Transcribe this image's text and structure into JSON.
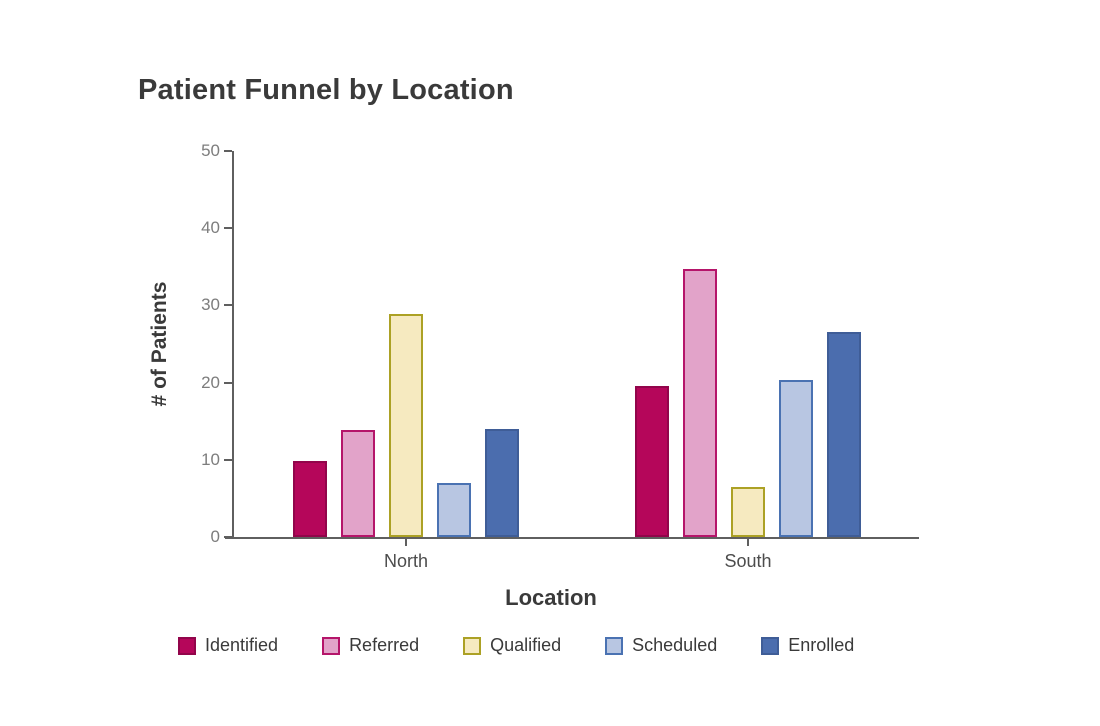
{
  "title": "Patient Funnel by Location",
  "chart_data": {
    "type": "bar",
    "title": "Patient Funnel by Location",
    "xlabel": "Location",
    "ylabel": "# of Patients",
    "categories": [
      "North",
      "South"
    ],
    "series": [
      {
        "name": "Identified",
        "values": [
          9.9,
          19.5
        ],
        "fill": "#b5065a",
        "edge": "#92054b"
      },
      {
        "name": "Referred",
        "values": [
          13.9,
          34.7
        ],
        "fill": "#e2a3c9",
        "edge": "#b5156a"
      },
      {
        "name": "Qualified",
        "values": [
          28.9,
          6.5
        ],
        "fill": "#f6eac0",
        "edge": "#aca125"
      },
      {
        "name": "Scheduled",
        "values": [
          7.0,
          20.4
        ],
        "fill": "#b8c6e2",
        "edge": "#4a72b2"
      },
      {
        "name": "Enrolled",
        "values": [
          14.0,
          26.6
        ],
        "fill": "#4b6dae",
        "edge": "#3f5d97"
      }
    ],
    "ylim": [
      0,
      50
    ],
    "y_ticks": [
      0,
      10,
      20,
      30,
      40,
      50
    ],
    "grid": false,
    "legend_position": "bottom"
  },
  "colors": {
    "axis": "#5f5f5f",
    "tick_label": "#7d7d7d",
    "category_label": "#4c4c4c",
    "text": "#3a3a3a",
    "background": "#ffffff"
  }
}
